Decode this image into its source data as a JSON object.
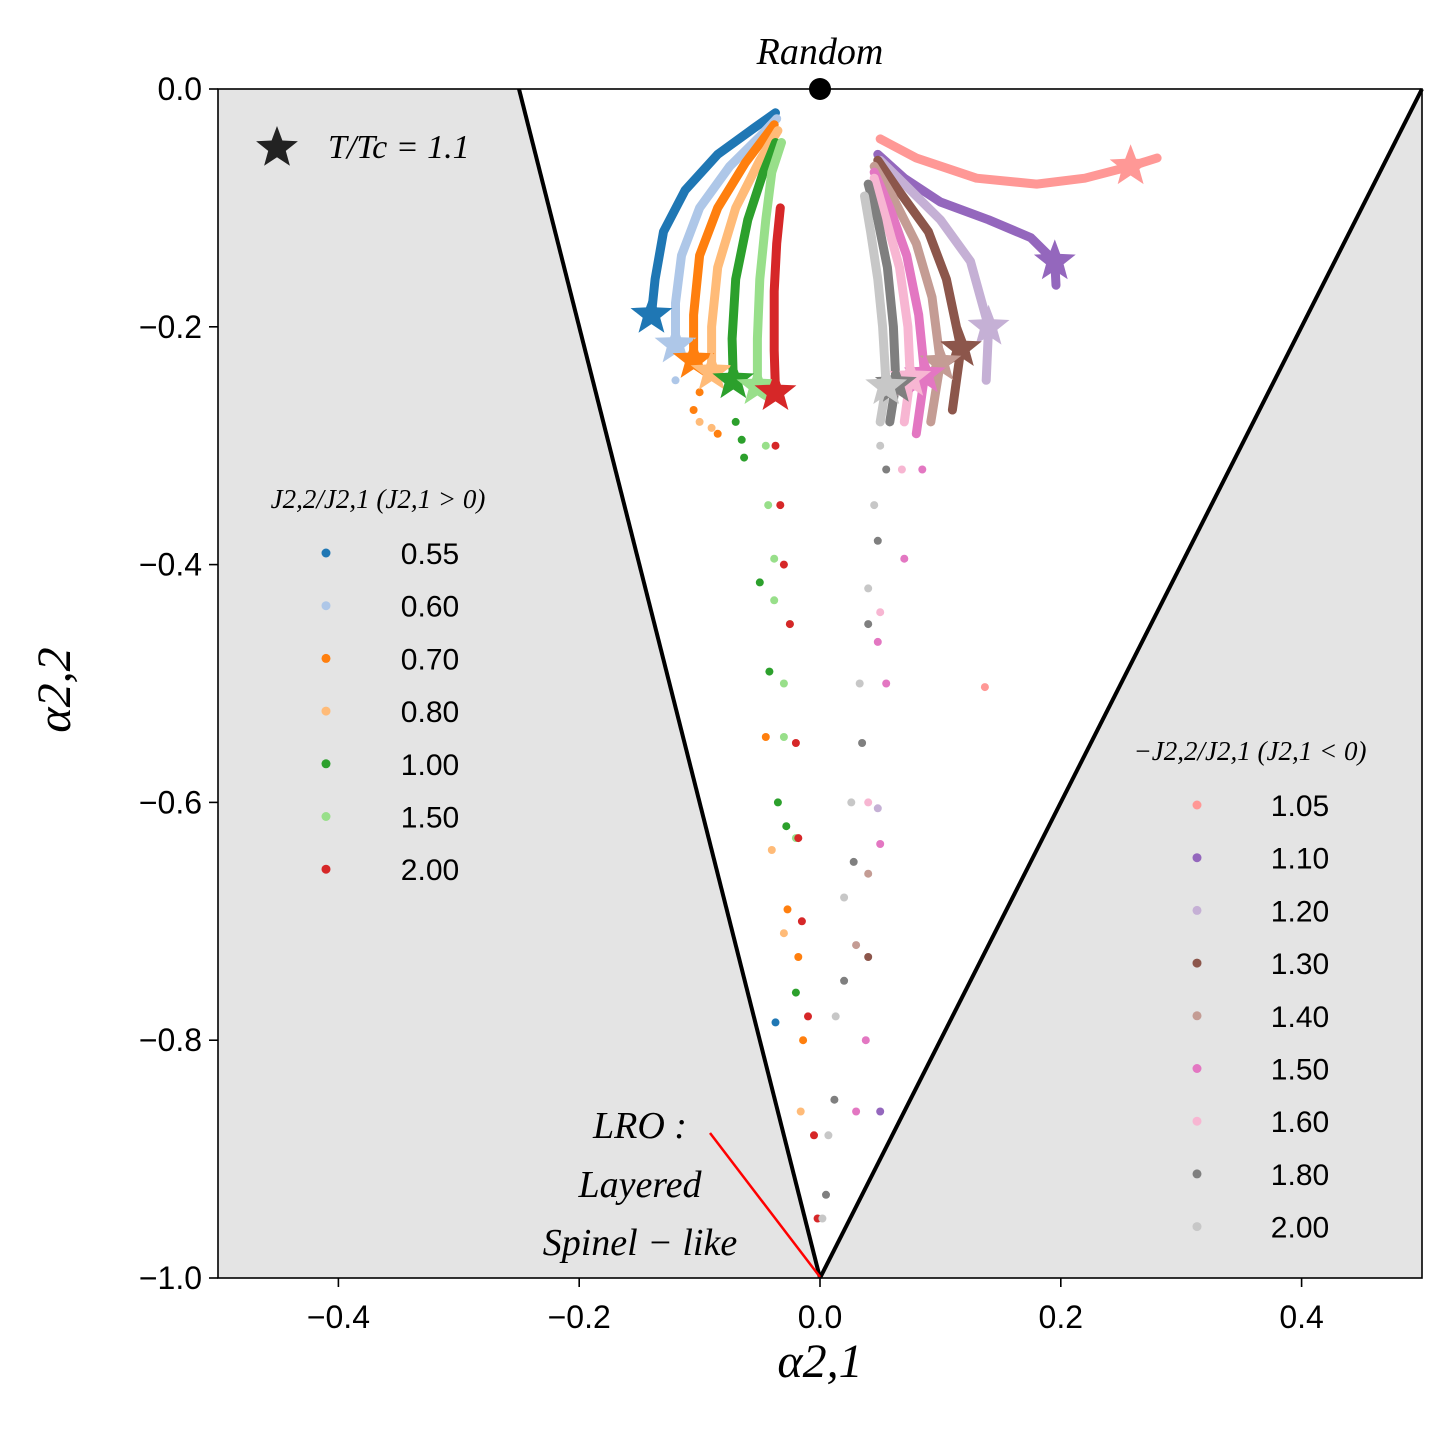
{
  "chart_data": {
    "type": "scatter",
    "title": "",
    "xlabel": "α2,1",
    "ylabel": "α2,2",
    "xlim": [
      -0.5,
      0.5
    ],
    "ylim": [
      -1.0,
      0.0
    ],
    "xticks": [
      "−0.4",
      "−0.2",
      "0.0",
      "0.2",
      "0.4"
    ],
    "xtick_values": [
      -0.4,
      -0.2,
      0.0,
      0.2,
      0.4
    ],
    "yticks": [
      "0.0",
      "−0.2",
      "−0.4",
      "−0.6",
      "−0.8",
      "−1.0"
    ],
    "ytick_values": [
      0.0,
      -0.2,
      -0.4,
      -0.6,
      -0.8,
      -1.0
    ],
    "boundary_lines": [
      {
        "name": "left-boundary",
        "points": [
          [
            -0.25,
            0.0
          ],
          [
            0.0,
            -1.0
          ]
        ]
      },
      {
        "name": "right-boundary",
        "points": [
          [
            0.5,
            0.0
          ],
          [
            0.0,
            -1.0
          ]
        ]
      }
    ],
    "forbidden_region_color": "#e4e4e4",
    "random_point": {
      "x": 0.0,
      "y": 0.0,
      "label": "Random"
    },
    "annotation": {
      "lines": [
        "LRO :",
        "Layered",
        "Spinel − like"
      ],
      "target": [
        0.0,
        -1.0
      ],
      "line_color": "#ff0000"
    },
    "star_legend": {
      "label": "T/Tc = 1.1"
    },
    "legend_positive": {
      "title": "J2,2/J2,1 (J2,1 > 0)",
      "placement": "center-left",
      "entries": [
        {
          "label": "0.55",
          "color": "#1f77b4"
        },
        {
          "label": "0.60",
          "color": "#aec7e8"
        },
        {
          "label": "0.70",
          "color": "#ff7f0e"
        },
        {
          "label": "0.80",
          "color": "#ffbb78"
        },
        {
          "label": "1.00",
          "color": "#2ca02c"
        },
        {
          "label": "1.50",
          "color": "#98df8a"
        },
        {
          "label": "2.00",
          "color": "#d62728"
        }
      ]
    },
    "legend_negative": {
      "title": "−J2,2/J2,1 (J2,1 < 0)",
      "placement": "lower-right",
      "entries": [
        {
          "label": "1.05",
          "color": "#ff9896"
        },
        {
          "label": "1.10",
          "color": "#9467bd"
        },
        {
          "label": "1.20",
          "color": "#c5b0d5"
        },
        {
          "label": "1.30",
          "color": "#8c564b"
        },
        {
          "label": "1.40",
          "color": "#c49c94"
        },
        {
          "label": "1.50",
          "color": "#e377c2"
        },
        {
          "label": "1.60",
          "color": "#f7b6d2"
        },
        {
          "label": "1.80",
          "color": "#7f7f7f"
        },
        {
          "label": "2.00",
          "color": "#c7c7c7"
        }
      ]
    },
    "series": [
      {
        "name": "0.55",
        "color": "#1f77b4",
        "star": [
          -0.14,
          -0.19
        ],
        "curve": [
          [
            -0.14,
            -0.19
          ],
          [
            -0.137,
            -0.16
          ],
          [
            -0.13,
            -0.12
          ],
          [
            -0.112,
            -0.085
          ],
          [
            -0.085,
            -0.055
          ],
          [
            -0.055,
            -0.033
          ],
          [
            -0.037,
            -0.02
          ]
        ],
        "tail": [
          [
            -0.037,
            -0.785
          ]
        ]
      },
      {
        "name": "0.60",
        "color": "#aec7e8",
        "star": [
          -0.12,
          -0.215
        ],
        "curve": [
          [
            -0.12,
            -0.215
          ],
          [
            -0.12,
            -0.18
          ],
          [
            -0.115,
            -0.14
          ],
          [
            -0.1,
            -0.1
          ],
          [
            -0.075,
            -0.065
          ],
          [
            -0.05,
            -0.04
          ],
          [
            -0.036,
            -0.025
          ]
        ],
        "tail": [
          [
            -0.12,
            -0.245
          ]
        ]
      },
      {
        "name": "0.70",
        "color": "#ff7f0e",
        "star": [
          -0.105,
          -0.228
        ],
        "curve": [
          [
            -0.105,
            -0.228
          ],
          [
            -0.105,
            -0.19
          ],
          [
            -0.1,
            -0.14
          ],
          [
            -0.085,
            -0.1
          ],
          [
            -0.062,
            -0.062
          ],
          [
            -0.038,
            -0.03
          ]
        ],
        "tail": [
          [
            -0.1,
            -0.255
          ],
          [
            -0.105,
            -0.27
          ],
          [
            -0.085,
            -0.29
          ],
          [
            -0.045,
            -0.545
          ],
          [
            -0.027,
            -0.69
          ],
          [
            -0.018,
            -0.73
          ],
          [
            -0.014,
            -0.8
          ]
        ]
      },
      {
        "name": "0.80",
        "color": "#ffbb78",
        "star": [
          -0.09,
          -0.238
        ],
        "curve": [
          [
            -0.09,
            -0.238
          ],
          [
            -0.09,
            -0.2
          ],
          [
            -0.085,
            -0.15
          ],
          [
            -0.07,
            -0.1
          ],
          [
            -0.05,
            -0.06
          ],
          [
            -0.035,
            -0.035
          ]
        ],
        "tail": [
          [
            -0.1,
            -0.28
          ],
          [
            -0.09,
            -0.285
          ],
          [
            -0.04,
            -0.64
          ],
          [
            -0.03,
            -0.71
          ],
          [
            -0.016,
            -0.86
          ]
        ]
      },
      {
        "name": "1.00",
        "color": "#2ca02c",
        "star": [
          -0.072,
          -0.245
        ],
        "curve": [
          [
            -0.072,
            -0.245
          ],
          [
            -0.073,
            -0.21
          ],
          [
            -0.07,
            -0.16
          ],
          [
            -0.06,
            -0.11
          ],
          [
            -0.047,
            -0.07
          ],
          [
            -0.037,
            -0.045
          ]
        ],
        "tail": [
          [
            -0.07,
            -0.28
          ],
          [
            -0.065,
            -0.295
          ],
          [
            -0.063,
            -0.31
          ],
          [
            -0.05,
            -0.415
          ],
          [
            -0.042,
            -0.49
          ],
          [
            -0.035,
            -0.6
          ],
          [
            -0.028,
            -0.62
          ],
          [
            -0.02,
            -0.76
          ]
        ]
      },
      {
        "name": "1.50",
        "color": "#98df8a",
        "star": [
          -0.052,
          -0.25
        ],
        "curve": [
          [
            -0.052,
            -0.25
          ],
          [
            -0.052,
            -0.21
          ],
          [
            -0.05,
            -0.16
          ],
          [
            -0.045,
            -0.11
          ],
          [
            -0.04,
            -0.07
          ],
          [
            -0.032,
            -0.045
          ]
        ],
        "tail": [
          [
            -0.045,
            -0.3
          ],
          [
            -0.043,
            -0.35
          ],
          [
            -0.038,
            -0.395
          ],
          [
            -0.038,
            -0.43
          ],
          [
            -0.025,
            -0.45
          ],
          [
            -0.03,
            -0.5
          ],
          [
            -0.03,
            -0.545
          ],
          [
            -0.02,
            -0.63
          ]
        ]
      },
      {
        "name": "2.00",
        "color": "#d62728",
        "star": [
          -0.037,
          -0.255
        ],
        "curve": [
          [
            -0.037,
            -0.255
          ],
          [
            -0.038,
            -0.22
          ],
          [
            -0.038,
            -0.17
          ],
          [
            -0.036,
            -0.13
          ],
          [
            -0.033,
            -0.1
          ]
        ],
        "tail": [
          [
            -0.037,
            -0.3
          ],
          [
            -0.033,
            -0.35
          ],
          [
            -0.03,
            -0.4
          ],
          [
            -0.025,
            -0.45
          ],
          [
            -0.02,
            -0.55
          ],
          [
            -0.018,
            -0.63
          ],
          [
            -0.015,
            -0.7
          ],
          [
            -0.01,
            -0.78
          ],
          [
            -0.005,
            -0.88
          ],
          [
            -0.002,
            -0.95
          ]
        ]
      },
      {
        "name": "1.05",
        "color": "#ff9896",
        "star": [
          0.258,
          -0.065
        ],
        "curve": [
          [
            0.05,
            -0.042
          ],
          [
            0.08,
            -0.058
          ],
          [
            0.13,
            -0.075
          ],
          [
            0.18,
            -0.08
          ],
          [
            0.22,
            -0.075
          ],
          [
            0.258,
            -0.065
          ],
          [
            0.28,
            -0.058
          ]
        ],
        "tail": [
          [
            0.137,
            -0.503
          ]
        ]
      },
      {
        "name": "1.10",
        "color": "#9467bd",
        "star": [
          0.195,
          -0.145
        ],
        "curve": [
          [
            0.048,
            -0.055
          ],
          [
            0.07,
            -0.075
          ],
          [
            0.1,
            -0.095
          ],
          [
            0.14,
            -0.11
          ],
          [
            0.175,
            -0.125
          ],
          [
            0.195,
            -0.145
          ],
          [
            0.196,
            -0.165
          ]
        ],
        "tail": [
          [
            0.05,
            -0.86
          ]
        ]
      },
      {
        "name": "1.20",
        "color": "#c5b0d5",
        "star": [
          0.14,
          -0.2
        ],
        "curve": [
          [
            0.05,
            -0.06
          ],
          [
            0.07,
            -0.08
          ],
          [
            0.1,
            -0.11
          ],
          [
            0.125,
            -0.145
          ],
          [
            0.14,
            -0.2
          ],
          [
            0.138,
            -0.245
          ]
        ],
        "tail": [
          [
            0.048,
            -0.605
          ]
        ]
      },
      {
        "name": "1.30",
        "color": "#8c564b",
        "star": [
          0.117,
          -0.218
        ],
        "curve": [
          [
            0.048,
            -0.06
          ],
          [
            0.065,
            -0.085
          ],
          [
            0.09,
            -0.12
          ],
          [
            0.105,
            -0.16
          ],
          [
            0.117,
            -0.218
          ],
          [
            0.11,
            -0.27
          ]
        ],
        "tail": [
          [
            0.04,
            -0.73
          ]
        ]
      },
      {
        "name": "1.40",
        "color": "#c49c94",
        "star": [
          0.1,
          -0.23
        ],
        "curve": [
          [
            0.045,
            -0.065
          ],
          [
            0.06,
            -0.09
          ],
          [
            0.08,
            -0.13
          ],
          [
            0.093,
            -0.175
          ],
          [
            0.1,
            -0.23
          ],
          [
            0.092,
            -0.28
          ]
        ],
        "tail": [
          [
            0.04,
            -0.66
          ],
          [
            0.03,
            -0.72
          ]
        ]
      },
      {
        "name": "1.50",
        "color": "#e377c2",
        "star": [
          0.087,
          -0.24
        ],
        "curve": [
          [
            0.045,
            -0.07
          ],
          [
            0.058,
            -0.1
          ],
          [
            0.072,
            -0.14
          ],
          [
            0.082,
            -0.19
          ],
          [
            0.087,
            -0.24
          ],
          [
            0.08,
            -0.29
          ]
        ],
        "tail": [
          [
            0.085,
            -0.32
          ],
          [
            0.07,
            -0.395
          ],
          [
            0.048,
            -0.465
          ],
          [
            0.055,
            -0.5
          ],
          [
            0.05,
            -0.635
          ],
          [
            0.038,
            -0.8
          ],
          [
            0.03,
            -0.86
          ]
        ]
      },
      {
        "name": "1.60",
        "color": "#f7b6d2",
        "star": [
          0.075,
          -0.243
        ],
        "curve": [
          [
            0.045,
            -0.075
          ],
          [
            0.055,
            -0.11
          ],
          [
            0.066,
            -0.15
          ],
          [
            0.073,
            -0.2
          ],
          [
            0.075,
            -0.243
          ],
          [
            0.07,
            -0.28
          ]
        ],
        "tail": [
          [
            0.068,
            -0.32
          ],
          [
            0.05,
            -0.44
          ],
          [
            0.04,
            -0.6
          ]
        ]
      },
      {
        "name": "1.80",
        "color": "#7f7f7f",
        "star": [
          0.063,
          -0.248
        ],
        "curve": [
          [
            0.04,
            -0.08
          ],
          [
            0.048,
            -0.11
          ],
          [
            0.056,
            -0.15
          ],
          [
            0.061,
            -0.2
          ],
          [
            0.063,
            -0.248
          ],
          [
            0.058,
            -0.28
          ]
        ],
        "tail": [
          [
            0.055,
            -0.32
          ],
          [
            0.048,
            -0.38
          ],
          [
            0.04,
            -0.45
          ],
          [
            0.035,
            -0.55
          ],
          [
            0.028,
            -0.65
          ],
          [
            0.02,
            -0.75
          ],
          [
            0.012,
            -0.85
          ],
          [
            0.005,
            -0.93
          ]
        ]
      },
      {
        "name": "2.00",
        "color": "#c7c7c7",
        "star": [
          0.055,
          -0.25
        ],
        "curve": [
          [
            0.037,
            -0.09
          ],
          [
            0.042,
            -0.12
          ],
          [
            0.048,
            -0.16
          ],
          [
            0.052,
            -0.2
          ],
          [
            0.055,
            -0.25
          ],
          [
            0.05,
            -0.28
          ]
        ],
        "tail": [
          [
            0.05,
            -0.3
          ],
          [
            0.045,
            -0.35
          ],
          [
            0.04,
            -0.42
          ],
          [
            0.033,
            -0.5
          ],
          [
            0.026,
            -0.6
          ],
          [
            0.02,
            -0.68
          ],
          [
            0.013,
            -0.78
          ],
          [
            0.007,
            -0.88
          ],
          [
            0.002,
            -0.95
          ]
        ]
      }
    ]
  }
}
